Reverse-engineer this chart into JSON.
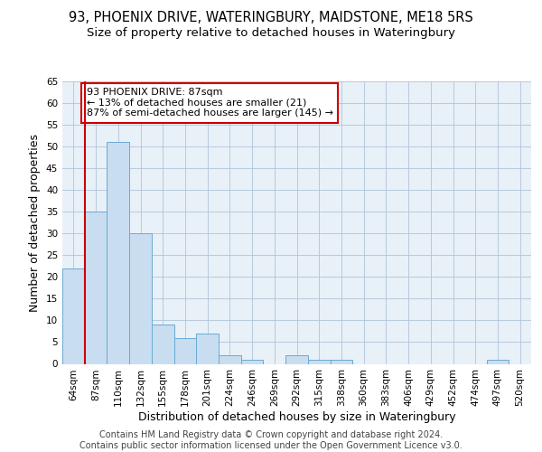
{
  "title_line1": "93, PHOENIX DRIVE, WATERINGBURY, MAIDSTONE, ME18 5RS",
  "title_line2": "Size of property relative to detached houses in Wateringbury",
  "xlabel": "Distribution of detached houses by size in Wateringbury",
  "ylabel": "Number of detached properties",
  "categories": [
    "64sqm",
    "87sqm",
    "110sqm",
    "132sqm",
    "155sqm",
    "178sqm",
    "201sqm",
    "224sqm",
    "246sqm",
    "269sqm",
    "292sqm",
    "315sqm",
    "338sqm",
    "360sqm",
    "383sqm",
    "406sqm",
    "429sqm",
    "452sqm",
    "474sqm",
    "497sqm",
    "520sqm"
  ],
  "values": [
    22,
    35,
    51,
    30,
    9,
    6,
    7,
    2,
    1,
    0,
    2,
    1,
    1,
    0,
    0,
    0,
    0,
    0,
    0,
    1,
    0
  ],
  "bar_color": "#c9ddf0",
  "bar_edge_color": "#6aaad4",
  "highlight_line_color": "#cc0000",
  "annotation_text": "93 PHOENIX DRIVE: 87sqm\n← 13% of detached houses are smaller (21)\n87% of semi-detached houses are larger (145) →",
  "annotation_box_facecolor": "#ffffff",
  "annotation_box_edgecolor": "#cc0000",
  "ylim": [
    0,
    65
  ],
  "yticks": [
    0,
    5,
    10,
    15,
    20,
    25,
    30,
    35,
    40,
    45,
    50,
    55,
    60,
    65
  ],
  "bg_color": "#e8f0f8",
  "grid_color": "#b0c4d8",
  "footer_text": "Contains HM Land Registry data © Crown copyright and database right 2024.\nContains public sector information licensed under the Open Government Licence v3.0.",
  "title_fontsize": 10.5,
  "subtitle_fontsize": 9.5,
  "axis_label_fontsize": 9,
  "tick_fontsize": 7.5,
  "annotation_fontsize": 8,
  "footer_fontsize": 7
}
